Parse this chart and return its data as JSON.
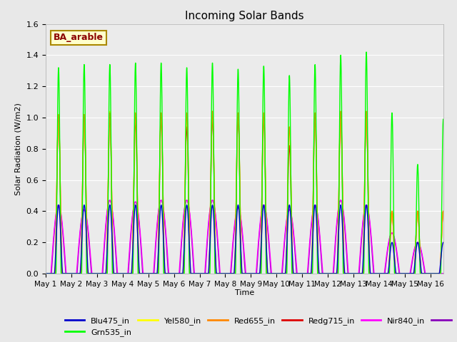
{
  "title": "Incoming Solar Bands",
  "xlabel": "Time",
  "ylabel": "Solar Radiation (W/m2)",
  "ylim": [
    0.0,
    1.6
  ],
  "annotation_text": "BA_arable",
  "background_color": "#e8e8e8",
  "axes_bg": "#ebebeb",
  "series": {
    "Blu475_in": {
      "color": "#0000cc",
      "lw": 1.0
    },
    "Grn535_in": {
      "color": "#00ff00",
      "lw": 1.0
    },
    "Yel580_in": {
      "color": "#ffff00",
      "lw": 1.0
    },
    "Red655_in": {
      "color": "#ff8800",
      "lw": 1.0
    },
    "Redg715_in": {
      "color": "#dd0000",
      "lw": 1.0
    },
    "Nir840_in": {
      "color": "#ff00ff",
      "lw": 1.0
    },
    "Nir945_in": {
      "color": "#8800bb",
      "lw": 1.0
    }
  },
  "xtick_labels": [
    "May 1",
    "May 2",
    "May 3",
    "May 4",
    "May 5",
    "May 6",
    "May 7",
    "May 8",
    "May 9",
    "May 10",
    "May 11",
    "May 12",
    "May 13",
    "May 14",
    "May 15",
    "May 16"
  ],
  "xtick_positions": [
    0,
    1,
    2,
    3,
    4,
    5,
    6,
    7,
    8,
    9,
    10,
    11,
    12,
    13,
    14,
    15
  ],
  "ytick_labels": [
    "0.0",
    "0.2",
    "0.4",
    "0.6",
    "0.8",
    "1.0",
    "1.2",
    "1.4",
    "1.6"
  ],
  "ytick_positions": [
    0.0,
    0.2,
    0.4,
    0.6,
    0.8,
    1.0,
    1.2,
    1.4,
    1.6
  ],
  "day_amplitudes": {
    "Grn535_in": [
      1.32,
      1.34,
      1.34,
      1.35,
      1.35,
      1.32,
      1.35,
      1.31,
      1.33,
      1.27,
      1.34,
      1.4,
      1.42,
      1.03,
      0.7,
      0.99
    ],
    "Red655_in": [
      1.02,
      1.02,
      1.03,
      1.03,
      1.03,
      1.03,
      1.04,
      1.03,
      1.03,
      0.94,
      1.03,
      1.04,
      1.04,
      0.4,
      0.4,
      0.4
    ],
    "Redg715_in": [
      1.0,
      1.0,
      1.0,
      0.98,
      1.0,
      0.94,
      1.0,
      1.0,
      1.0,
      0.82,
      1.0,
      1.0,
      1.0,
      0.4,
      0.4,
      0.4
    ],
    "Yel580_in": [
      1.02,
      1.02,
      1.04,
      1.03,
      1.03,
      1.02,
      1.04,
      1.03,
      1.03,
      0.94,
      1.03,
      1.04,
      1.04,
      0.4,
      0.4,
      0.4
    ],
    "Blu475_in": [
      0.44,
      0.44,
      0.44,
      0.44,
      0.44,
      0.44,
      0.44,
      0.44,
      0.44,
      0.44,
      0.44,
      0.44,
      0.44,
      0.2,
      0.2,
      0.2
    ],
    "Nir840_in": [
      0.44,
      0.41,
      0.47,
      0.46,
      0.47,
      0.47,
      0.47,
      0.42,
      0.44,
      0.41,
      0.44,
      0.47,
      0.44,
      0.26,
      0.2,
      0.0
    ],
    "Nir945_in": [
      0.44,
      0.41,
      0.47,
      0.46,
      0.47,
      0.47,
      0.47,
      0.42,
      0.44,
      0.41,
      0.44,
      0.47,
      0.44,
      0.26,
      0.2,
      0.0
    ]
  },
  "day_widths": {
    "Grn535_in": 0.1,
    "Red655_in": 0.13,
    "Redg715_in": 0.13,
    "Yel580_in": 0.13,
    "Blu475_in": 0.16,
    "Nir840_in": 0.3,
    "Nir945_in": 0.28
  },
  "peak_power": {
    "Grn535_in": 1.5,
    "Red655_in": 1.5,
    "Redg715_in": 1.5,
    "Yel580_in": 1.5,
    "Blu475_in": 1.5,
    "Nir840_in": 1.0,
    "Nir945_in": 1.0
  }
}
